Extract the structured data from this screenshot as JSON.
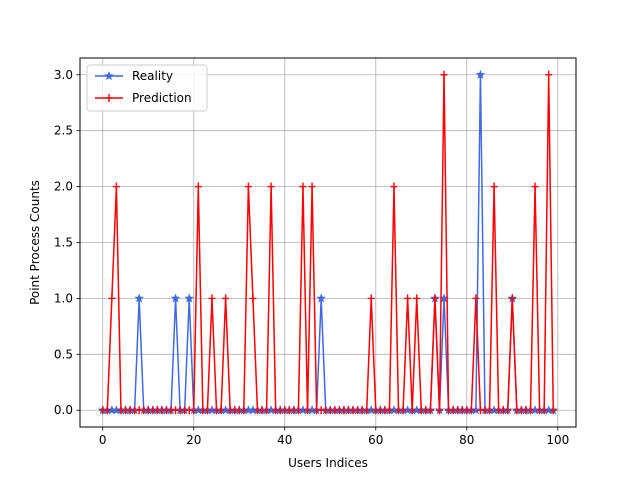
{
  "chart_data": {
    "type": "line",
    "xlabel": "Users Indices",
    "ylabel": "Point Process Counts",
    "xlim": [
      -5,
      104
    ],
    "ylim": [
      -0.15,
      3.15
    ],
    "xticks": [
      0,
      20,
      40,
      60,
      80,
      100
    ],
    "yticks": [
      0.0,
      0.5,
      1.0,
      1.5,
      2.0,
      2.5,
      3.0
    ],
    "ytick_labels": [
      "0.0",
      "0.5",
      "1.0",
      "1.5",
      "2.0",
      "2.5",
      "3.0"
    ],
    "grid": true,
    "legend_position": "top-left",
    "x": [
      0,
      1,
      2,
      3,
      4,
      5,
      6,
      7,
      8,
      9,
      10,
      11,
      12,
      13,
      14,
      15,
      16,
      17,
      18,
      19,
      20,
      21,
      22,
      23,
      24,
      25,
      26,
      27,
      28,
      29,
      30,
      31,
      32,
      33,
      34,
      35,
      36,
      37,
      38,
      39,
      40,
      41,
      42,
      43,
      44,
      45,
      46,
      47,
      48,
      49,
      50,
      51,
      52,
      53,
      54,
      55,
      56,
      57,
      58,
      59,
      60,
      61,
      62,
      63,
      64,
      65,
      66,
      67,
      68,
      69,
      70,
      71,
      72,
      73,
      74,
      75,
      76,
      77,
      78,
      79,
      80,
      81,
      82,
      83,
      84,
      85,
      86,
      87,
      88,
      89,
      90,
      91,
      92,
      93,
      94,
      95,
      96,
      97,
      98,
      99
    ],
    "series": [
      {
        "name": "Reality",
        "color": "#4169E1",
        "marker": "star",
        "values": [
          0,
          0,
          0,
          0,
          0,
          0,
          0,
          0,
          1,
          0,
          0,
          0,
          0,
          0,
          0,
          0,
          1,
          0,
          0,
          1,
          0,
          0,
          0,
          0,
          0,
          0,
          0,
          0,
          0,
          0,
          0,
          0,
          0,
          0,
          0,
          0,
          0,
          0,
          0,
          0,
          0,
          0,
          0,
          0,
          0,
          0,
          0,
          0,
          1,
          0,
          0,
          0,
          0,
          0,
          0,
          0,
          0,
          0,
          0,
          0,
          0,
          0,
          0,
          0,
          0,
          0,
          0,
          0,
          0,
          0,
          0,
          0,
          0,
          1,
          0,
          1,
          0,
          0,
          0,
          0,
          0,
          0,
          0,
          3,
          0,
          0,
          0,
          0,
          0,
          0,
          1,
          0,
          0,
          0,
          0,
          0,
          0,
          0,
          0,
          0
        ]
      },
      {
        "name": "Prediction",
        "color": "#FF0000",
        "marker": "tri-cross",
        "values": [
          0,
          0,
          1,
          2,
          0,
          0,
          0,
          0,
          0,
          0,
          0,
          0,
          0,
          0,
          0,
          0,
          0,
          0,
          0,
          0,
          0,
          2,
          0,
          0,
          1,
          0,
          0,
          1,
          0,
          0,
          0,
          0,
          2,
          1,
          0,
          0,
          0,
          2,
          0,
          0,
          0,
          0,
          0,
          0,
          2,
          0,
          2,
          0,
          0,
          0,
          0,
          0,
          0,
          0,
          0,
          0,
          0,
          0,
          0,
          1,
          0,
          0,
          0,
          0,
          2,
          0,
          0,
          1,
          0,
          1,
          0,
          0,
          0,
          1,
          0,
          3,
          0,
          0,
          0,
          0,
          0,
          0,
          1,
          0,
          0,
          0,
          2,
          0,
          0,
          0,
          1,
          0,
          0,
          0,
          0,
          2,
          0,
          0,
          3,
          0
        ]
      }
    ]
  }
}
